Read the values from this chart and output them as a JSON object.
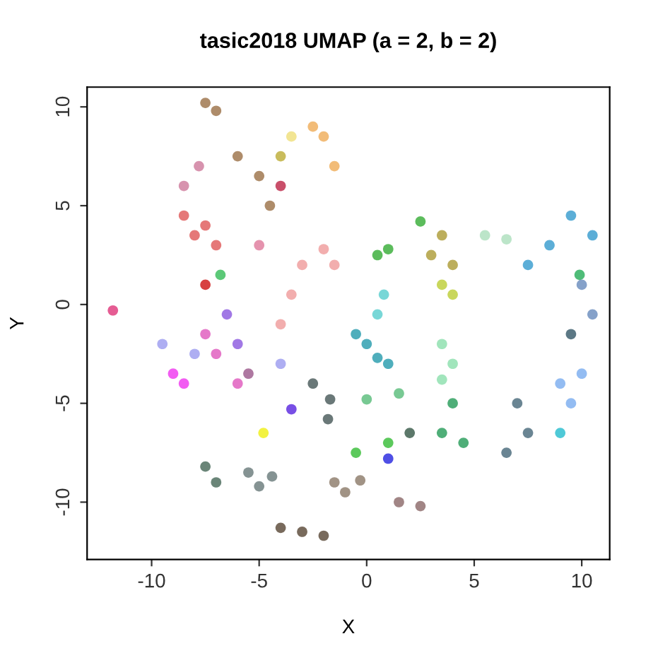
{
  "chart_data": {
    "type": "scatter",
    "title": "tasic2018 UMAP (a = 2, b = 2)",
    "xlabel": "X",
    "ylabel": "Y",
    "xlim": [
      -13,
      11.3
    ],
    "ylim": [
      -12.9,
      11
    ],
    "xticks": [
      -10,
      -5,
      0,
      5,
      10
    ],
    "yticks": [
      -10,
      -5,
      0,
      5,
      10
    ],
    "marker": "circle",
    "series": [
      {
        "color": "#e06060",
        "x": [
          -8,
          -7.5,
          -8.5,
          -7
        ],
        "values": [
          3.5,
          4,
          4.5,
          3
        ]
      },
      {
        "color": "#d080a0",
        "x": [
          -8.5,
          -7.8
        ],
        "values": [
          6,
          7
        ]
      },
      {
        "color": "#a07850",
        "x": [
          -6,
          -5,
          -4.5,
          -7.5,
          -7
        ],
        "values": [
          7.5,
          6.5,
          5,
          10.2,
          9.8
        ]
      },
      {
        "color": "#c0b040",
        "x": [
          -4
        ],
        "values": [
          7.5
        ]
      },
      {
        "color": "#c03050",
        "x": [
          -4
        ],
        "values": [
          6
        ]
      },
      {
        "color": "#f0b060",
        "x": [
          -2,
          -1.5,
          -2.5
        ],
        "values": [
          8.5,
          7,
          9
        ]
      },
      {
        "color": "#f0e080",
        "x": [
          -3.5
        ],
        "values": [
          8.5
        ]
      },
      {
        "color": "#e080a0",
        "x": [
          -5
        ],
        "values": [
          3
        ]
      },
      {
        "color": "#f0a0a0",
        "x": [
          -3,
          -2,
          -1.5,
          -3.5,
          -4
        ],
        "values": [
          2,
          2.8,
          2,
          0.5,
          -1
        ]
      },
      {
        "color": "#d02020",
        "x": [
          -7.5
        ],
        "values": [
          1
        ]
      },
      {
        "color": "#40c060",
        "x": [
          -6.8
        ],
        "values": [
          1.5
        ]
      },
      {
        "color": "#e04080",
        "x": [
          -11.8
        ],
        "values": [
          -0.3
        ]
      },
      {
        "color": "#a0a0f0",
        "x": [
          -9.5,
          -8,
          -4
        ],
        "values": [
          -2,
          -2.5,
          -3
        ]
      },
      {
        "color": "#9060e0",
        "x": [
          -6.5,
          -6
        ],
        "values": [
          -0.5,
          -2
        ]
      },
      {
        "color": "#f040f0",
        "x": [
          -8.5,
          -9
        ],
        "values": [
          -4,
          -3.5
        ]
      },
      {
        "color": "#e060c0",
        "x": [
          -7,
          -6,
          -7.5
        ],
        "values": [
          -2.5,
          -4,
          -1.5
        ]
      },
      {
        "color": "#a06090",
        "x": [
          -5.5
        ],
        "values": [
          -3.5
        ]
      },
      {
        "color": "#40b040",
        "x": [
          0.5,
          1,
          2.5
        ],
        "values": [
          2.5,
          2.8,
          4.2
        ]
      },
      {
        "color": "#60d0d0",
        "x": [
          0.8,
          0.5
        ],
        "values": [
          0.5,
          -0.5
        ]
      },
      {
        "color": "#30a0b0",
        "x": [
          0,
          1,
          0.5,
          -0.5
        ],
        "values": [
          -2,
          -3,
          -2.7,
          -1.5
        ]
      },
      {
        "color": "#b0a040",
        "x": [
          3.5,
          3,
          4
        ],
        "values": [
          3.5,
          2.5,
          2
        ]
      },
      {
        "color": "#c0d040",
        "x": [
          4,
          3.5
        ],
        "values": [
          0.5,
          1
        ]
      },
      {
        "color": "#b0e0c0",
        "x": [
          5.5,
          6.5
        ],
        "values": [
          3.5,
          3.3
        ]
      },
      {
        "color": "#90e0b0",
        "x": [
          3.5,
          4,
          3.5
        ],
        "values": [
          -2,
          -3,
          -3.8
        ]
      },
      {
        "color": "#40a0d0",
        "x": [
          7.5,
          8.5,
          9.5,
          10.5
        ],
        "values": [
          2,
          3,
          4.5,
          3.5
        ]
      },
      {
        "color": "#7090c0",
        "x": [
          10,
          10.5
        ],
        "values": [
          1,
          -0.5
        ]
      },
      {
        "color": "#406070",
        "x": [
          9.5
        ],
        "values": [
          -1.5
        ]
      },
      {
        "color": "#30b060",
        "x": [
          9.9
        ],
        "values": [
          1.5
        ]
      },
      {
        "color": "#80b0f0",
        "x": [
          9,
          10,
          9.5
        ],
        "values": [
          -4,
          -3.5,
          -5
        ]
      },
      {
        "color": "#30c0d0",
        "x": [
          9
        ],
        "values": [
          -6.5
        ]
      },
      {
        "color": "#507080",
        "x": [
          7,
          7.5,
          6.5
        ],
        "values": [
          -5,
          -6.5,
          -7.5
        ]
      },
      {
        "color": "#30a060",
        "x": [
          4,
          3.5,
          4.5
        ],
        "values": [
          -5,
          -6.5,
          -7
        ]
      },
      {
        "color": "#60c080",
        "x": [
          1.5,
          0
        ],
        "values": [
          -4.5,
          -4.8
        ]
      },
      {
        "color": "#40c040",
        "x": [
          1,
          -0.5
        ],
        "values": [
          -7,
          -7.5
        ]
      },
      {
        "color": "#406050",
        "x": [
          2
        ],
        "values": [
          -6.5
        ]
      },
      {
        "color": "#3030e0",
        "x": [
          1
        ],
        "values": [
          -7.8
        ]
      },
      {
        "color": "#6030e0",
        "x": [
          -3.5
        ],
        "values": [
          -5.3
        ]
      },
      {
        "color": "#f0f020",
        "x": [
          -4.8
        ],
        "values": [
          -6.5
        ]
      },
      {
        "color": "#506060",
        "x": [
          -2.5,
          -1.7,
          -1.8
        ],
        "values": [
          -4,
          -4.8,
          -5.8
        ]
      },
      {
        "color": "#507060",
        "x": [
          -7.5,
          -7
        ],
        "values": [
          -8.2,
          -9
        ]
      },
      {
        "color": "#708080",
        "x": [
          -5.5,
          -5,
          -4.4
        ],
        "values": [
          -8.5,
          -9.2,
          -8.7
        ]
      },
      {
        "color": "#908070",
        "x": [
          -1.5,
          -1,
          -0.3
        ],
        "values": [
          -9,
          -9.5,
          -8.9
        ]
      },
      {
        "color": "#907070",
        "x": [
          1.5,
          2.5
        ],
        "values": [
          -10,
          -10.2
        ]
      },
      {
        "color": "#605040",
        "x": [
          -4,
          -3,
          -2
        ],
        "values": [
          -11.3,
          -11.5,
          -11.7
        ]
      }
    ]
  }
}
